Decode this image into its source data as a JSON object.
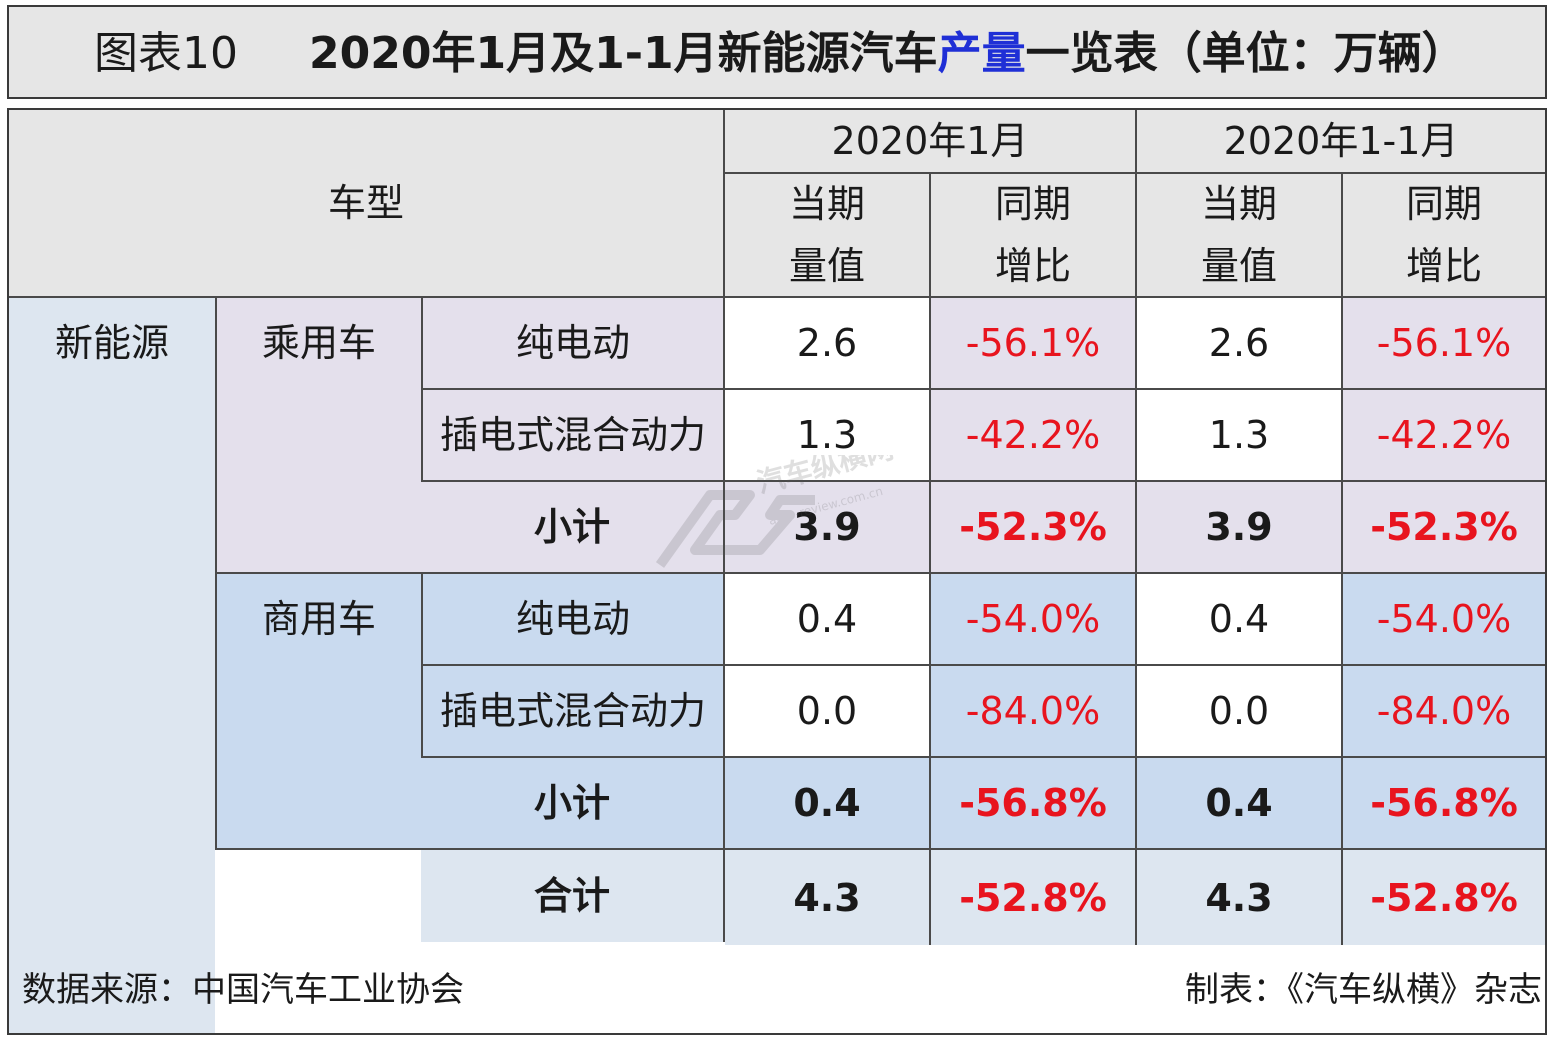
{
  "title": {
    "prefix": "图表10",
    "main_part1": "2020年1月及1-1月新能源汽车",
    "main_highlight": "产量",
    "main_part2": "一览表（单位：万辆）"
  },
  "header": {
    "vehicle_type": "车型",
    "period1": "2020年1月",
    "period2": "2020年1-1月",
    "current_line1": "当期",
    "current_line2": "量值",
    "yoy_line1": "同期",
    "yoy_line2": "增比"
  },
  "rows": {
    "category": "新能源",
    "passenger": "乘用车",
    "commercial": "商用车",
    "bev": "纯电动",
    "phev": "插电式混合动力",
    "subtotal": "小计",
    "total": "合计"
  },
  "colors": {
    "passenger_bg": "#e4e0ec",
    "commercial_bg": "#c9daef",
    "negative_text": "#e8141e",
    "title_highlight": "#1f2fd6"
  },
  "chart_data": {
    "type": "table",
    "title": "2020年1月及1-1月新能源汽车产量一览表（单位：万辆）",
    "columns": [
      "2020年1月 当期量值",
      "2020年1月 同期增比",
      "2020年1-1月 当期量值",
      "2020年1-1月 同期增比"
    ],
    "values": {
      "passenger_bev": [
        "2.6",
        "-56.1%",
        "2.6",
        "-56.1%"
      ],
      "passenger_phev": [
        "1.3",
        "-42.2%",
        "1.3",
        "-42.2%"
      ],
      "passenger_subtotal": [
        "3.9",
        "-52.3%",
        "3.9",
        "-52.3%"
      ],
      "commercial_bev": [
        "0.4",
        "-54.0%",
        "0.4",
        "-54.0%"
      ],
      "commercial_phev": [
        "0.0",
        "-84.0%",
        "0.0",
        "-84.0%"
      ],
      "commercial_subtotal": [
        "0.4",
        "-56.8%",
        "0.4",
        "-56.8%"
      ],
      "total": [
        "4.3",
        "-52.8%",
        "4.3",
        "-52.8%"
      ]
    }
  },
  "footer": {
    "source": "数据来源：中国汽车工业协会",
    "maker": "制表：《汽车纵横》杂志"
  },
  "watermark": {
    "text": "汽车纵横网",
    "url": "auto-review.com.cn"
  }
}
